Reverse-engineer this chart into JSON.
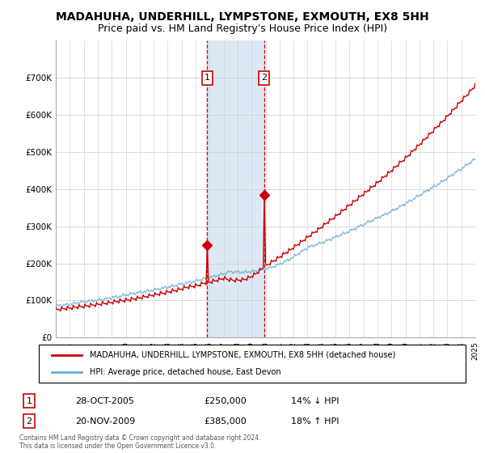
{
  "title": "MADAHUHA, UNDERHILL, LYMPSTONE, EXMOUTH, EX8 5HH",
  "subtitle": "Price paid vs. HM Land Registry's House Price Index (HPI)",
  "ylim": [
    0,
    800000
  ],
  "yticks": [
    0,
    100000,
    200000,
    300000,
    400000,
    500000,
    600000,
    700000
  ],
  "ytick_labels": [
    "£0",
    "£100K",
    "£200K",
    "£300K",
    "£400K",
    "£500K",
    "£600K",
    "£700K"
  ],
  "hpi_color": "#6baed6",
  "price_color": "#cc0000",
  "highlight_bg": "#dce9f5",
  "vline_color": "#cc0000",
  "marker1_year": 2005.83,
  "marker1_value": 250000,
  "marker2_year": 2009.89,
  "marker2_value": 385000,
  "annotation1": "1",
  "annotation2": "2",
  "legend_line1": "MADAHUHA, UNDERHILL, LYMPSTONE, EXMOUTH, EX8 5HH (detached house)",
  "legend_line2": "HPI: Average price, detached house, East Devon",
  "table_row1_num": "1",
  "table_row1_date": "28-OCT-2005",
  "table_row1_price": "£250,000",
  "table_row1_hpi": "14% ↓ HPI",
  "table_row2_num": "2",
  "table_row2_date": "20-NOV-2009",
  "table_row2_price": "£385,000",
  "table_row2_hpi": "18% ↑ HPI",
  "footnote1": "Contains HM Land Registry data © Crown copyright and database right 2024.",
  "footnote2": "This data is licensed under the Open Government Licence v3.0.",
  "title_fontsize": 10,
  "subtitle_fontsize": 9
}
